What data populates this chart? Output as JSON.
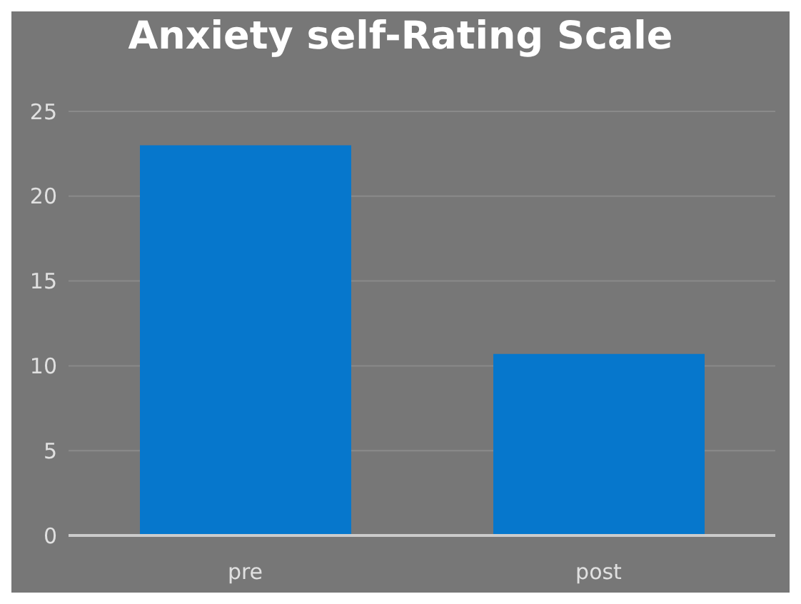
{
  "chart_data": {
    "type": "bar",
    "title": "Anxiety self-Rating Scale",
    "categories": [
      "pre",
      "post"
    ],
    "values": [
      23,
      10.7
    ],
    "color": "#0677cc",
    "ylim": [
      0,
      25
    ],
    "yticks": [
      0,
      5,
      10,
      15,
      20,
      25
    ],
    "grid": "y"
  }
}
